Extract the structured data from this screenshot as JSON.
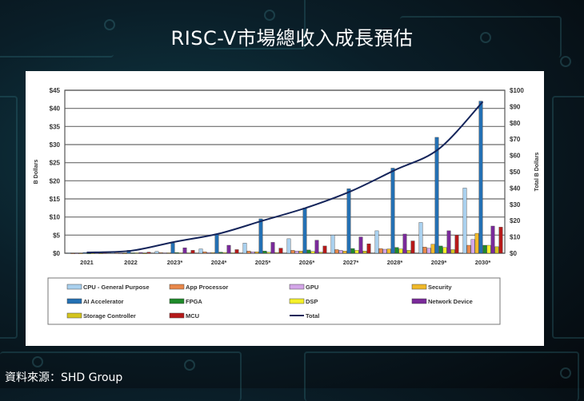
{
  "page": {
    "title": "RISC-V市場總收入成長預估",
    "source": "資料來源：SHD Group"
  },
  "colors": {
    "CPU - General Purpose": "#a9d0ee",
    "App Processor": "#e8874a",
    "GPU": "#d3a5e8",
    "Security": "#f0b92a",
    "AI Accelerator": "#2470b3",
    "FPGA": "#1f8a2a",
    "DSP": "#f5f02a",
    "Network Device": "#7a2a9a",
    "Storage Controller": "#d4c41e",
    "MCU": "#b51a1a",
    "Total": "#14245a"
  },
  "chart_data": {
    "type": "bar",
    "title": "RISC-V市場總收入成長預估",
    "xlabel": "",
    "ylabel": "B Dollars",
    "y2label": "Total B Dollars",
    "ylim": [
      0,
      45
    ],
    "y2lim": [
      0,
      100
    ],
    "yticks": [
      "$0",
      "$5",
      "$10",
      "$15",
      "$20",
      "$25",
      "$30",
      "$35",
      "$40",
      "$45"
    ],
    "y2ticks": [
      "$0",
      "$10",
      "$20",
      "$30",
      "$40",
      "$50",
      "$60",
      "$70",
      "$80",
      "$90",
      "$100"
    ],
    "grid": true,
    "legend_position": "bottom",
    "categories": [
      "2021",
      "2022",
      "2023*",
      "2024*",
      "2025*",
      "2026*",
      "2027*",
      "2028*",
      "2029*",
      "2030*"
    ],
    "series": [
      {
        "name": "CPU - General Purpose",
        "values": [
          0.1,
          0.2,
          0.5,
          1.2,
          2.8,
          4.0,
          5.0,
          6.2,
          8.5,
          18.0
        ]
      },
      {
        "name": "App Processor",
        "values": [
          0.0,
          0.1,
          0.2,
          0.4,
          0.6,
          0.8,
          1.0,
          1.3,
          1.7,
          2.2
        ]
      },
      {
        "name": "GPU",
        "values": [
          0.0,
          0.0,
          0.1,
          0.2,
          0.4,
          0.6,
          0.8,
          1.1,
          1.4,
          3.8
        ]
      },
      {
        "name": "Security",
        "values": [
          0.0,
          0.0,
          0.1,
          0.2,
          0.4,
          0.6,
          0.6,
          1.2,
          2.5,
          5.5
        ]
      },
      {
        "name": "AI Accelerator",
        "values": [
          0.2,
          0.8,
          2.8,
          5.3,
          9.5,
          12.5,
          17.8,
          23.5,
          32.0,
          42.0
        ]
      },
      {
        "name": "FPGA",
        "values": [
          0.0,
          0.1,
          0.2,
          0.3,
          0.6,
          0.9,
          1.3,
          1.6,
          2.0,
          2.2
        ]
      },
      {
        "name": "DSP",
        "values": [
          0.0,
          0.1,
          0.1,
          0.2,
          0.3,
          0.5,
          0.8,
          1.2,
          1.6,
          2.2
        ]
      },
      {
        "name": "Network Device",
        "values": [
          0.1,
          0.2,
          1.5,
          2.2,
          3.0,
          3.6,
          4.5,
          5.3,
          6.2,
          7.5
        ]
      },
      {
        "name": "Storage Controller",
        "values": [
          0.0,
          0.0,
          0.1,
          0.1,
          0.2,
          0.3,
          0.6,
          0.8,
          1.0,
          1.8
        ]
      },
      {
        "name": "MCU",
        "values": [
          0.1,
          0.3,
          0.8,
          1.0,
          1.4,
          2.0,
          2.6,
          3.4,
          5.0,
          7.2
        ]
      }
    ],
    "line": {
      "name": "Total",
      "axis": "right",
      "values": [
        0.5,
        1.5,
        7,
        12,
        20,
        28,
        38,
        51,
        64,
        93
      ]
    }
  },
  "legend": [
    {
      "label": "CPU - General Purpose"
    },
    {
      "label": "App Processor"
    },
    {
      "label": "GPU"
    },
    {
      "label": "Security"
    },
    {
      "label": "AI Accelerator"
    },
    {
      "label": "FPGA"
    },
    {
      "label": "DSP"
    },
    {
      "label": "Network Device"
    },
    {
      "label": "Storage Controller"
    },
    {
      "label": "MCU"
    },
    {
      "label": "Total"
    }
  ]
}
